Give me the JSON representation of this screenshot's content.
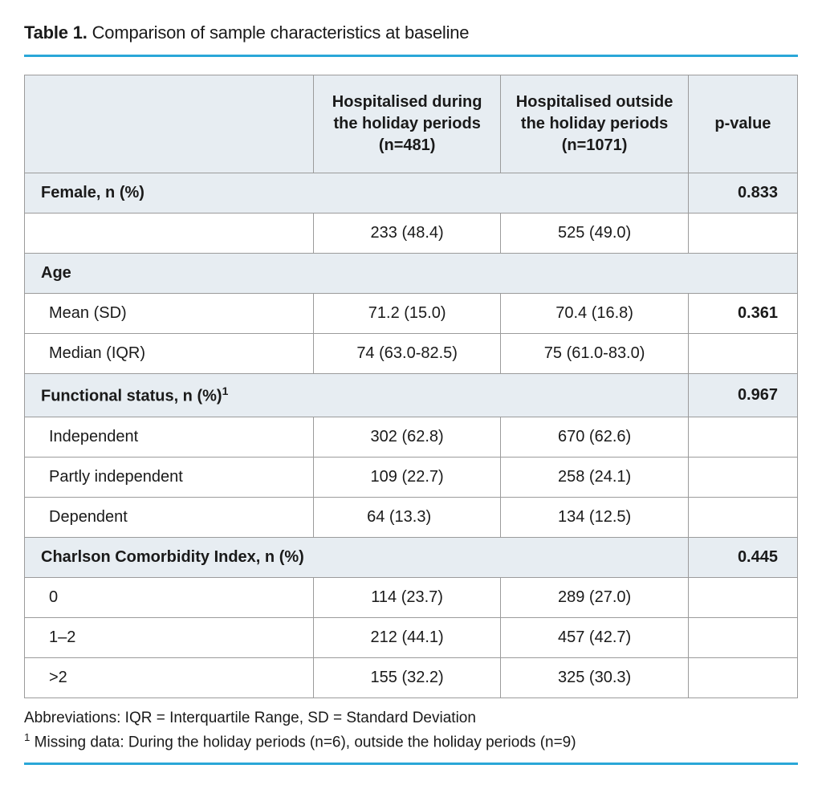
{
  "title": {
    "label": "Table 1.",
    "caption": "Comparison of sample characteristics at baseline"
  },
  "colors": {
    "rule": "#2aa7d8",
    "header_bg": "#e7edf2",
    "border": "#9b9b9b",
    "text": "#1a1a1a"
  },
  "header": {
    "col1": "",
    "col2": "Hospitalised during the holiday periods (n=481)",
    "col3": "Hospitalised outside the holiday periods (n=1071)",
    "col4": "p-value"
  },
  "sections": {
    "female": {
      "label": "Female, n (%)",
      "p": "0.833",
      "row": {
        "label": "",
        "c2": "233 (48.4)",
        "c3": "525 (49.0)",
        "p": ""
      }
    },
    "age": {
      "label": "Age",
      "p": "",
      "rows": [
        {
          "label": "Mean (SD)",
          "c2": "71.2 (15.0)",
          "c3": "70.4 (16.8)",
          "p": "0.361"
        },
        {
          "label": "Median (IQR)",
          "c2": "74 (63.0-82.5)",
          "c3": "75 (61.0-83.0)",
          "p": ""
        }
      ]
    },
    "functional": {
      "label_prefix": "Functional status, n (%)",
      "sup": "1",
      "p": "0.967",
      "rows": [
        {
          "label": "Independent",
          "c2": "302 (62.8)",
          "c3": "670 (62.6)",
          "p": ""
        },
        {
          "label": "Partly independent",
          "c2": "109 (22.7)",
          "c3": "258 (24.1)",
          "p": ""
        },
        {
          "label": "Dependent",
          "c2": "64 (13.3)",
          "c3": "134 (12.5)",
          "p": ""
        }
      ]
    },
    "charlson": {
      "label": "Charlson Comorbidity Index, n (%)",
      "p": "0.445",
      "rows": [
        {
          "label": "0",
          "c2": "114 (23.7)",
          "c3": "289 (27.0)",
          "p": ""
        },
        {
          "label": "1–2",
          "c2": "212 (44.1)",
          "c3": "457 (42.7)",
          "p": ""
        },
        {
          "label": ">2",
          "c2": "155 (32.2)",
          "c3": "325 (30.3)",
          "p": ""
        }
      ]
    }
  },
  "footnotes": {
    "abbrev": "Abbreviations: IQR = Interquartile Range, SD = Standard Deviation",
    "missing_sup": "1",
    "missing": " Missing data: During the holiday periods (n=6), outside the holiday periods (n=9)"
  }
}
